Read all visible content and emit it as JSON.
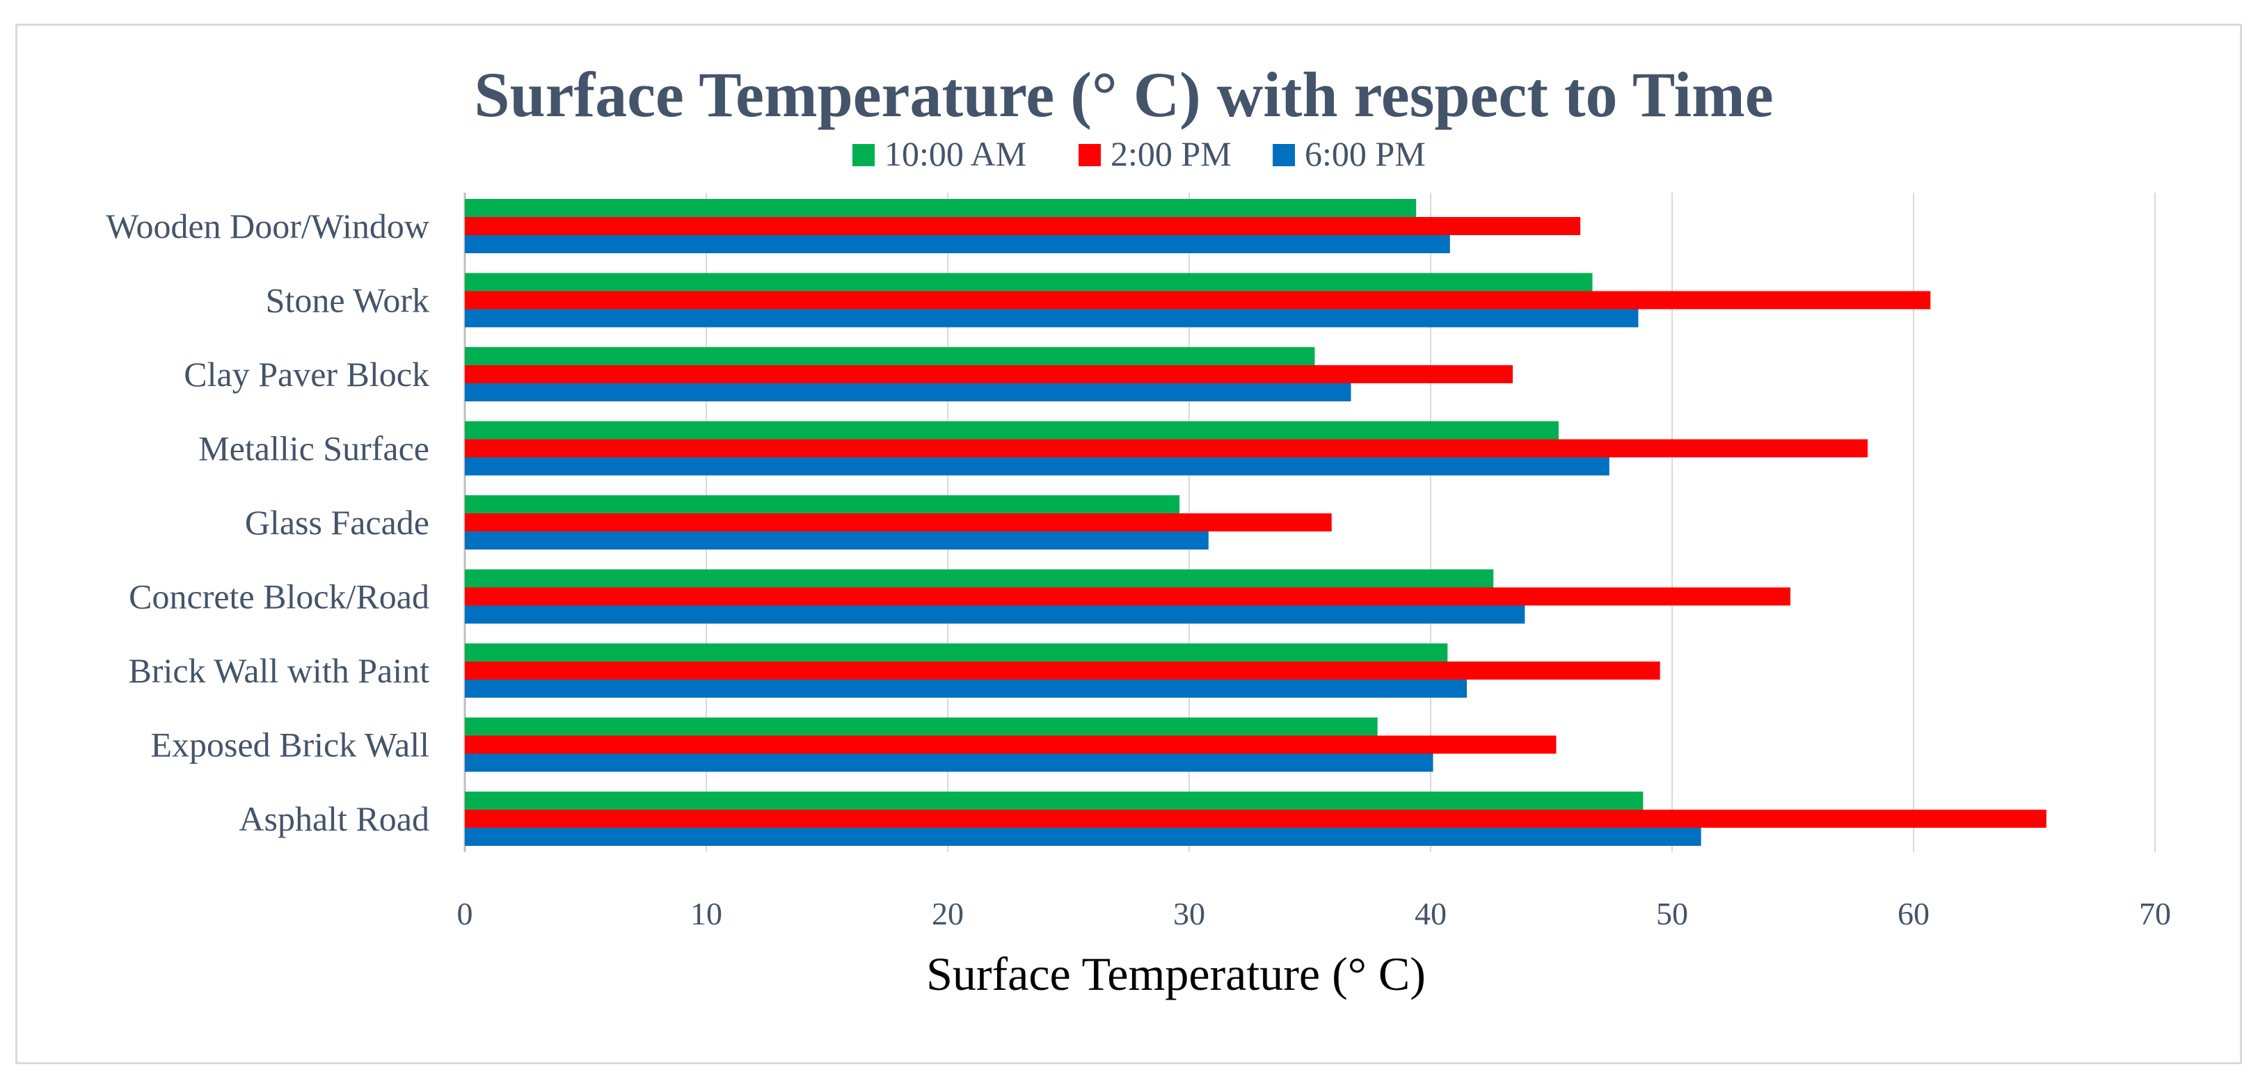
{
  "chart_data": {
    "type": "bar",
    "orientation": "horizontal",
    "title": "Surface Temperature (° C) with respect to Time",
    "xlabel": "Surface Temperature (° C)",
    "ylabel": "",
    "xlim": [
      0,
      70
    ],
    "xticks": [
      0,
      10,
      20,
      30,
      40,
      50,
      60,
      70
    ],
    "grid": "vertical",
    "legend_position": "top-center",
    "categories": [
      "Wooden Door/Window",
      "Stone Work",
      "Clay Paver Block",
      "Metallic Surface",
      "Glass Facade",
      "Concrete Block/Road",
      "Brick Wall with Paint",
      "Exposed Brick Wall",
      "Asphalt Road"
    ],
    "series": [
      {
        "name": "10:00 AM",
        "color": "#00b050",
        "values": [
          39.4,
          46.7,
          35.2,
          45.3,
          29.6,
          42.6,
          40.7,
          37.8,
          48.8
        ]
      },
      {
        "name": "2:00 PM",
        "color": "#ff0000",
        "values": [
          46.2,
          60.7,
          43.4,
          58.1,
          35.9,
          54.9,
          49.5,
          45.2,
          65.5
        ]
      },
      {
        "name": "6:00 PM",
        "color": "#0070c0",
        "values": [
          40.8,
          48.6,
          36.7,
          47.4,
          30.8,
          43.9,
          41.5,
          40.1,
          51.2
        ]
      }
    ]
  }
}
